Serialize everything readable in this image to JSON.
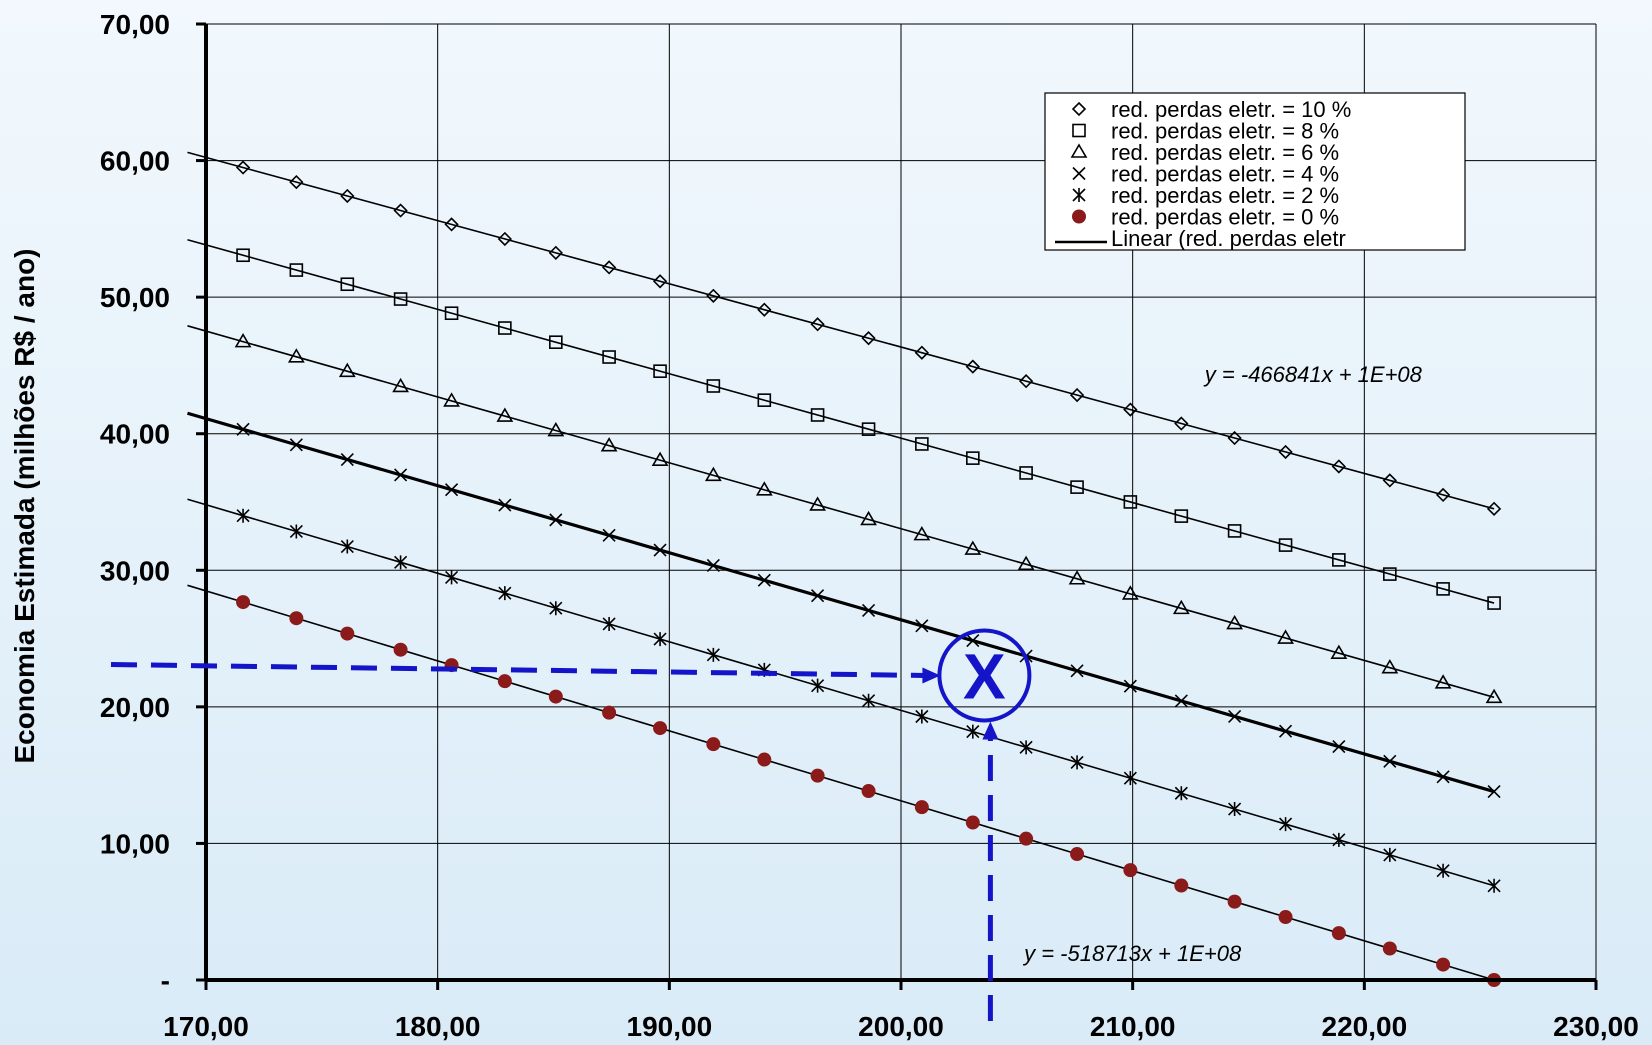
{
  "chart_data": {
    "type": "scatter",
    "ylabel": "Economia Estimada (milhões R$ / ano)",
    "xlabel": "",
    "xlim": [
      170,
      230
    ],
    "ylim": [
      0,
      70
    ],
    "x_ticks": [
      "170,00",
      "180,00",
      "190,00",
      "200,00",
      "210,00",
      "220,00",
      "230,00"
    ],
    "y_ticks": [
      "-",
      "10,00",
      "20,00",
      "30,00",
      "40,00",
      "50,00",
      "60,00",
      "70,00"
    ],
    "grid": true,
    "legend_position": "top-right",
    "x": [
      171.6,
      173.9,
      176.1,
      178.4,
      180.6,
      182.9,
      185.1,
      187.4,
      189.6,
      191.9,
      194.1,
      196.4,
      198.6,
      200.9,
      203.1,
      205.4,
      207.6,
      209.9,
      212.1,
      214.4,
      216.6,
      218.9,
      221.1,
      223.4,
      225.6
    ],
    "series": [
      {
        "name": "red. perdas eletr. = 10 %",
        "marker": "diamond",
        "fit": [
          60.6,
          34.5
        ]
      },
      {
        "name": "red. perdas eletr. = 8 %",
        "marker": "square",
        "fit": [
          54.2,
          27.6
        ]
      },
      {
        "name": "red. perdas eletr. = 6 %",
        "marker": "triangle",
        "fit": [
          47.9,
          20.7
        ]
      },
      {
        "name": "red. perdas eletr. = 4 %",
        "marker": "x",
        "fit": [
          41.5,
          13.8
        ]
      },
      {
        "name": "red. perdas eletr. = 2 %",
        "marker": "star",
        "fit": [
          35.2,
          6.9
        ]
      },
      {
        "name": "red. perdas eletr. = 0 %",
        "marker": "dot",
        "color": "#8b1a1a",
        "fit": [
          28.9,
          0.0
        ]
      }
    ],
    "trendline_legend": "Linear (red. perdas eletr",
    "annotations": [
      {
        "text": "y = -466841x + 1E+08",
        "x": 217.8,
        "y": 43.8
      },
      {
        "text": "y = -518713x + 1E+08",
        "x": 210.0,
        "y": 1.4
      }
    ],
    "highlight": {
      "label": "X",
      "x": 203.6,
      "y": 22.3,
      "color": "#1414c8",
      "h_from": 170,
      "h_y": 23.1,
      "v_y0": 22.3,
      "v_y1": -3
    }
  }
}
